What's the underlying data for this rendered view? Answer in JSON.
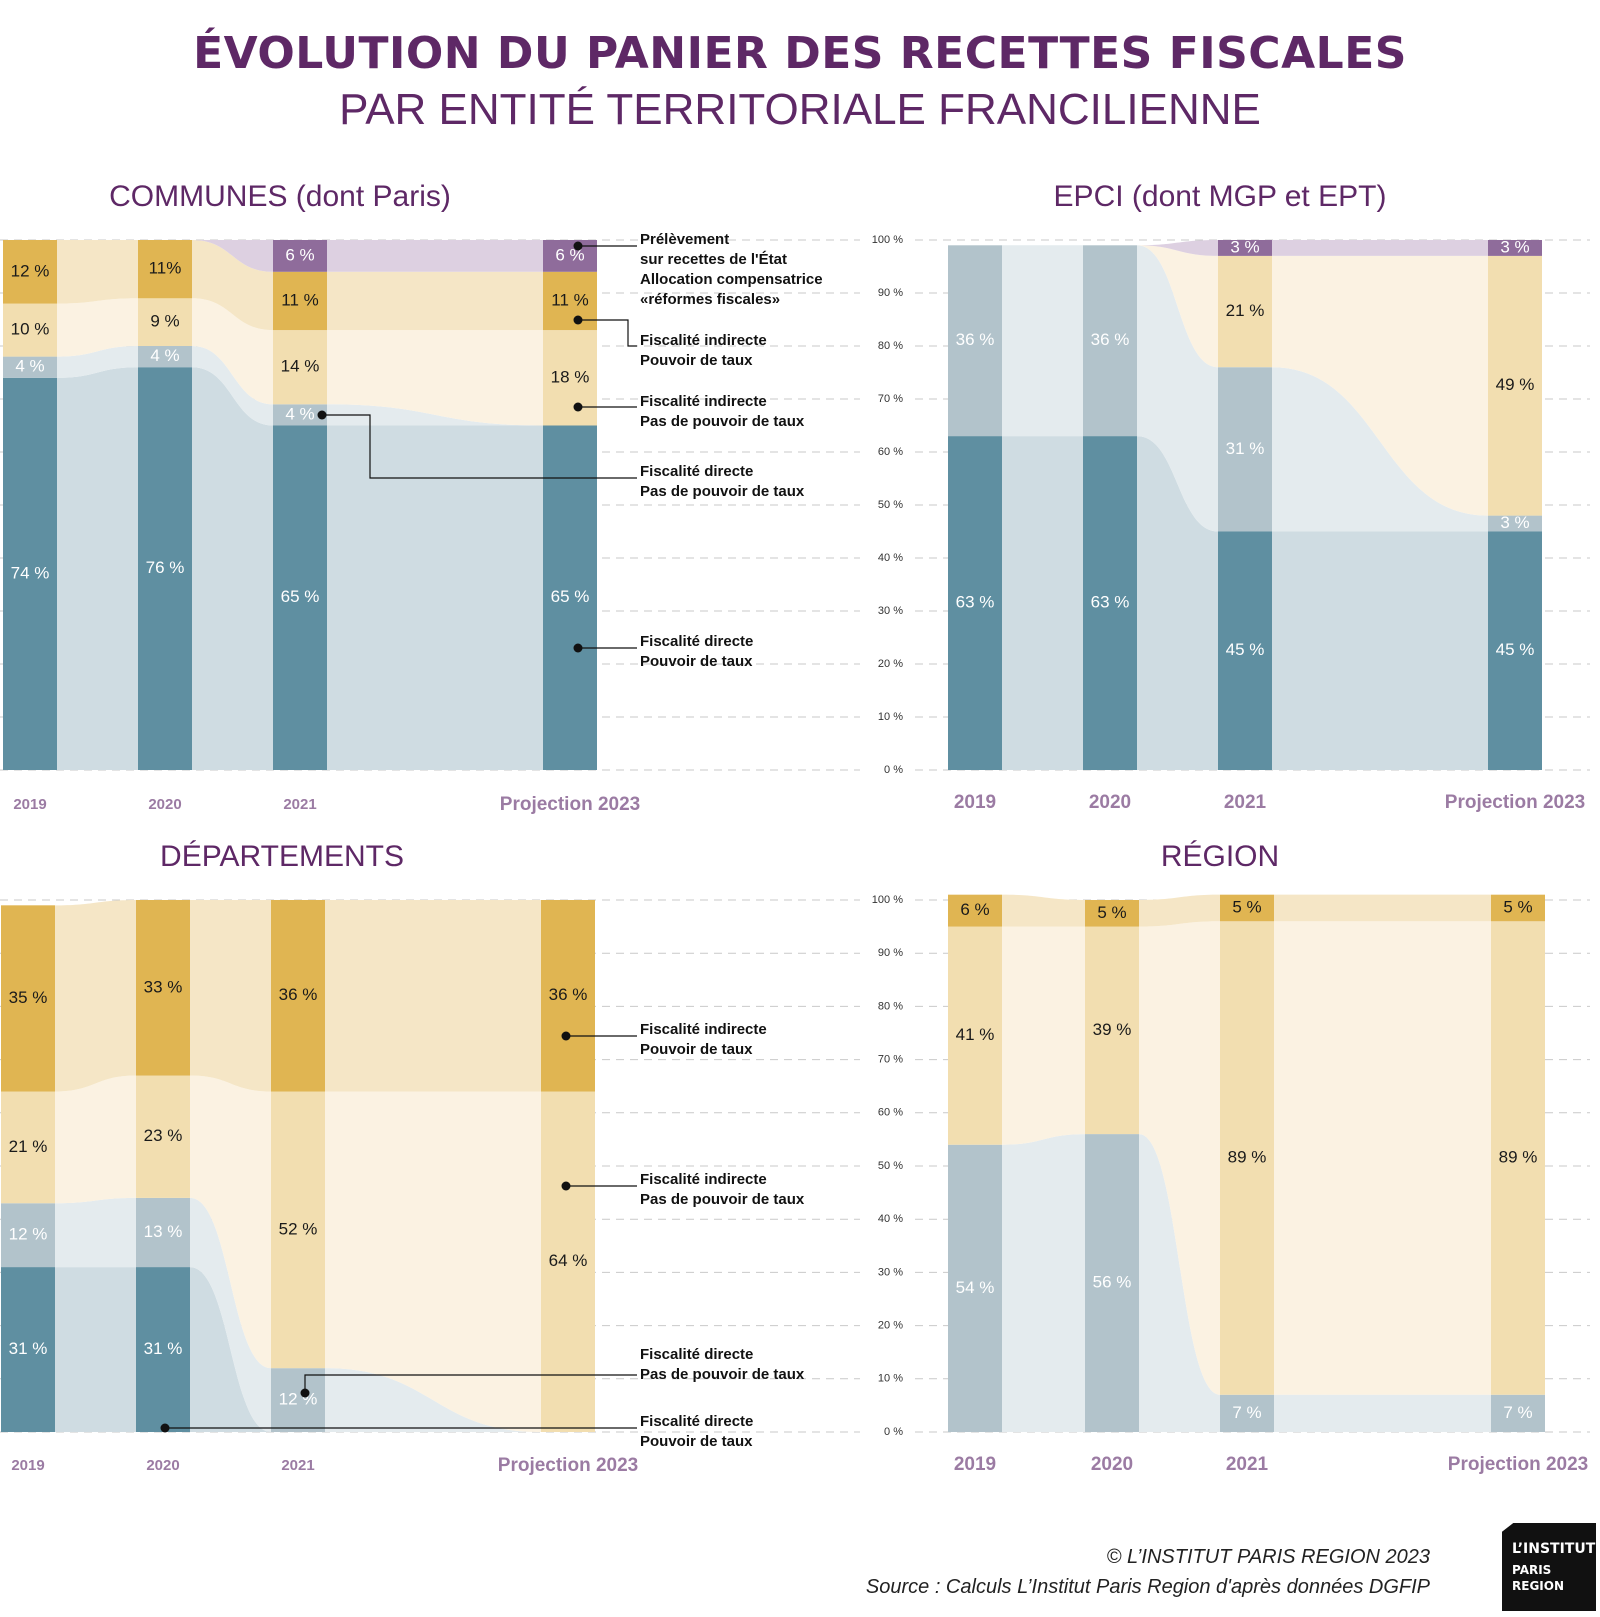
{
  "header": {
    "title_line1": "ÉVOLUTION DU PANIER DES RECETTES FISCALES",
    "title_line2": "PAR ENTITÉ TERRITORIALE FRANCILIENNE"
  },
  "colors": {
    "fd_pouvoir": "#5f8fa1",
    "fd_pas_pouvoir": "#b2c3cb",
    "fi_pas_pouvoir": "#f2deb0",
    "fi_pouvoir": "#e0b552",
    "prelevement": "#8f6c9b",
    "title": "#5e2866",
    "axis_label": "#9b7ba3"
  },
  "y_ticks": [
    "0 %",
    "10 %",
    "20 %",
    "30 %",
    "40 %",
    "50 %",
    "60 %",
    "70 %",
    "80 %",
    "90 %",
    "100 %"
  ],
  "chart_data": [
    {
      "type": "bar",
      "stacked": true,
      "title": "COMMUNES (dont Paris)",
      "categories": [
        "2019",
        "2020",
        "2021",
        "Projection 2023"
      ],
      "ylim": [
        0,
        100
      ],
      "y_axis_visible": false,
      "series": [
        {
          "name": "Fiscalité directe\nPouvoir de taux",
          "key": "fd_pouvoir",
          "values": [
            74,
            76,
            65,
            65
          ],
          "labels": [
            "74 %",
            "76 %",
            "65 %",
            "65 %"
          ]
        },
        {
          "name": "Fiscalité directe\nPas de pouvoir de taux",
          "key": "fd_pas_pouvoir",
          "values": [
            4,
            4,
            4,
            0
          ],
          "labels": [
            "4 %",
            "4 %",
            "4 %",
            ""
          ]
        },
        {
          "name": "Fiscalité indirecte\nPas de pouvoir de taux",
          "key": "fi_pas_pouvoir",
          "values": [
            10,
            9,
            14,
            18
          ],
          "labels": [
            "10 %",
            "9 %",
            "14 %",
            "18 %"
          ]
        },
        {
          "name": "Fiscalité indirecte\nPouvoir de taux",
          "key": "fi_pouvoir",
          "values": [
            12,
            11,
            11,
            11
          ],
          "labels": [
            "12 %",
            "11%",
            "11 %",
            "11 %"
          ]
        },
        {
          "name": "Prélèvement\nsur recettes de l'État\nAllocation compensatrice\n«réformes fiscales»",
          "key": "prelevement",
          "values": [
            0,
            0,
            6,
            6
          ],
          "labels": [
            "",
            "",
            "6 %",
            "6 %"
          ]
        }
      ]
    },
    {
      "type": "bar",
      "stacked": true,
      "title": "EPCI (dont MGP et EPT)",
      "categories": [
        "2019",
        "2020",
        "2021",
        "Projection 2023"
      ],
      "ylim": [
        0,
        100
      ],
      "y_axis_visible": true,
      "series": [
        {
          "key": "fd_pouvoir",
          "values": [
            63,
            63,
            45,
            45
          ],
          "labels": [
            "63 %",
            "63 %",
            "45 %",
            "45 %"
          ]
        },
        {
          "key": "fd_pas_pouvoir",
          "values": [
            36,
            36,
            31,
            3
          ],
          "labels": [
            "36 %",
            "36 %",
            "31 %",
            "3 %"
          ]
        },
        {
          "key": "fi_pas_pouvoir",
          "values": [
            0,
            0,
            21,
            49
          ],
          "labels": [
            "",
            "",
            "21 %",
            "49 %"
          ]
        },
        {
          "key": "prelevement",
          "values": [
            0,
            0,
            3,
            3
          ],
          "labels": [
            "",
            "",
            "3 %",
            "3 %"
          ]
        }
      ]
    },
    {
      "type": "bar",
      "stacked": true,
      "title": "DÉPARTEMENTS",
      "categories": [
        "2019",
        "2020",
        "2021",
        "Projection 2023"
      ],
      "ylim": [
        0,
        100
      ],
      "y_axis_visible": false,
      "series": [
        {
          "name": "Fiscalité directe\nPouvoir de taux",
          "key": "fd_pouvoir",
          "values": [
            31,
            31,
            0,
            0
          ],
          "labels": [
            "31 %",
            "31 %",
            "",
            ""
          ]
        },
        {
          "name": "Fiscalité directe\nPas de pouvoir de taux",
          "key": "fd_pas_pouvoir",
          "values": [
            12,
            13,
            12,
            0
          ],
          "labels": [
            "12 %",
            "13 %",
            "12 %",
            ""
          ]
        },
        {
          "name": "Fiscalité indirecte\nPas de pouvoir de taux",
          "key": "fi_pas_pouvoir",
          "values": [
            21,
            23,
            52,
            64
          ],
          "labels": [
            "21 %",
            "23 %",
            "52 %",
            "64 %"
          ]
        },
        {
          "name": "Fiscalité indirecte\nPouvoir de taux",
          "key": "fi_pouvoir",
          "values": [
            35,
            33,
            36,
            36
          ],
          "labels": [
            "35 %",
            "33 %",
            "36 %",
            "36 %"
          ]
        }
      ]
    },
    {
      "type": "bar",
      "stacked": true,
      "title": "RÉGION",
      "categories": [
        "2019",
        "2020",
        "2021",
        "Projection 2023"
      ],
      "ylim": [
        0,
        100
      ],
      "y_axis_visible": true,
      "series": [
        {
          "key": "fd_pas_pouvoir",
          "values": [
            54,
            56,
            7,
            7
          ],
          "labels": [
            "54 %",
            "56 %",
            "7 %",
            "7 %"
          ]
        },
        {
          "key": "fi_pas_pouvoir",
          "values": [
            41,
            39,
            89,
            89
          ],
          "labels": [
            "41 %",
            "39 %",
            "89 %",
            "89 %"
          ]
        },
        {
          "key": "fi_pouvoir",
          "values": [
            6,
            5,
            5,
            5
          ],
          "labels": [
            "6 %",
            "5 %",
            "5 %",
            "5 %"
          ]
        }
      ]
    }
  ],
  "footer": {
    "copyright": "© L’INSTITUT PARIS REGION 2023",
    "source": "Source : Calculs L’Institut Paris Region d'après données DGFIP"
  },
  "logo": {
    "line1": "L’INSTITUT",
    "line2": "PARIS",
    "line3": "REGION"
  }
}
